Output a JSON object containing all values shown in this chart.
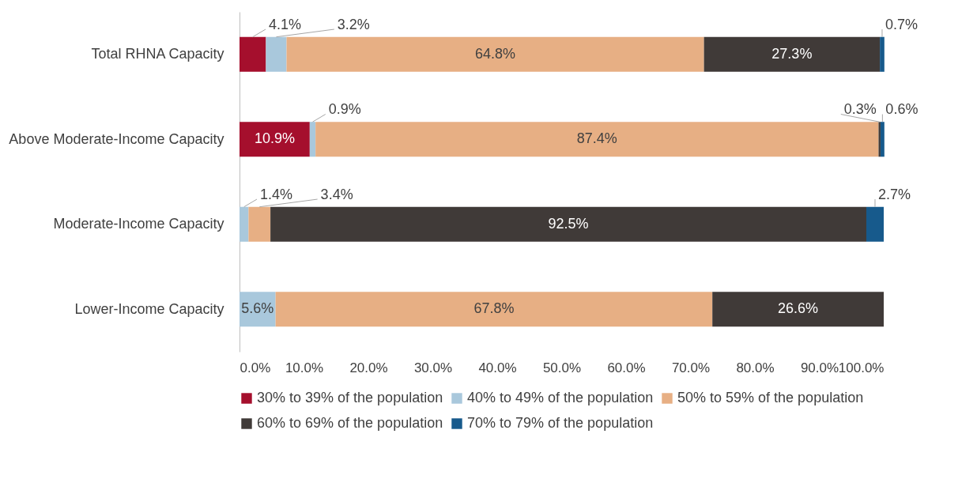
{
  "chart_data": {
    "type": "bar",
    "orientation": "horizontal",
    "stacked": true,
    "categories": [
      "Total RHNA Capacity",
      "Above Moderate-Income Capacity",
      "Moderate-Income Capacity",
      "Lower-Income Capacity"
    ],
    "series": [
      {
        "name": "30% to 39% of the population",
        "color": "#a50f2d",
        "values": [
          4.1,
          10.9,
          null,
          null
        ],
        "value_labels": [
          "4.1%",
          "10.9%",
          null,
          null
        ]
      },
      {
        "name": "40% to 49% of the population",
        "color": "#a9c8dc",
        "values": [
          3.2,
          0.9,
          1.4,
          5.6
        ],
        "value_labels": [
          "3.2%",
          "0.9%",
          "1.4%",
          "5.6%"
        ]
      },
      {
        "name": "50% to 59% of the population",
        "color": "#e7af84",
        "values": [
          64.8,
          87.4,
          3.4,
          67.8
        ],
        "value_labels": [
          "64.8%",
          "87.4%",
          "3.4%",
          "67.8%"
        ]
      },
      {
        "name": "60% to 69% of the population",
        "color": "#403a38",
        "values": [
          27.3,
          0.3,
          92.5,
          26.6
        ],
        "value_labels": [
          "27.3%",
          "0.3%",
          "92.5%",
          "26.6%"
        ]
      },
      {
        "name": "70% to 79% of the population",
        "color": "#175a8c",
        "values": [
          0.7,
          0.6,
          2.7,
          null
        ],
        "value_labels": [
          "0.7%",
          "0.6%",
          "2.7%",
          null
        ]
      }
    ],
    "xlim": [
      0,
      100
    ],
    "xticks": [
      {
        "value": 0,
        "label": "0.0%"
      },
      {
        "value": 10,
        "label": "10.0%"
      },
      {
        "value": 20,
        "label": "20.0%"
      },
      {
        "value": 30,
        "label": "30.0%"
      },
      {
        "value": 40,
        "label": "40.0%"
      },
      {
        "value": 50,
        "label": "50.0%"
      },
      {
        "value": 60,
        "label": "60.0%"
      },
      {
        "value": 70,
        "label": "70.0%"
      },
      {
        "value": 80,
        "label": "80.0%"
      },
      {
        "value": 90,
        "label": "90.0%"
      },
      {
        "value": 100,
        "label": "100.0%"
      }
    ],
    "legend": "bottom",
    "grid": false
  }
}
